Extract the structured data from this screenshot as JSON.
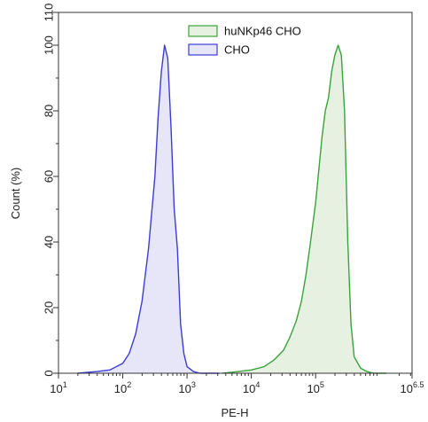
{
  "chart_data": {
    "type": "area",
    "xlabel": "PE-H",
    "ylabel": "Count (%)",
    "x_scale": "log10",
    "xlim": [
      1,
      6.5
    ],
    "ylim": [
      0,
      110
    ],
    "x_ticks": [
      {
        "value": 1,
        "base": "10",
        "exp": "1"
      },
      {
        "value": 2,
        "base": "10",
        "exp": "2"
      },
      {
        "value": 3,
        "base": "10",
        "exp": "3"
      },
      {
        "value": 4,
        "base": "10",
        "exp": "4"
      },
      {
        "value": 5,
        "base": "10",
        "exp": "5"
      },
      {
        "value": 6.5,
        "base": "10",
        "exp": "6.5"
      }
    ],
    "y_ticks": [
      0,
      20,
      40,
      60,
      80,
      100,
      110
    ],
    "grid": false,
    "legend": {
      "placement": "top-center",
      "entries": [
        "huNKp46 CHO",
        "CHO"
      ]
    },
    "series": [
      {
        "name": "huNKp46 CHO",
        "color": "#3aa33a",
        "fill": "#e6f1e2",
        "x": [
          3.55,
          3.8,
          4.0,
          4.2,
          4.35,
          4.5,
          4.6,
          4.7,
          4.78,
          4.85,
          4.92,
          5.0,
          5.05,
          5.1,
          5.15,
          5.2,
          5.25,
          5.3,
          5.35,
          5.4,
          5.45,
          5.5,
          5.55,
          5.6,
          5.7,
          5.8,
          5.9,
          6.1
        ],
        "y": [
          0,
          0.5,
          1,
          2,
          4,
          7,
          11,
          16,
          22,
          30,
          40,
          52,
          62,
          72,
          80,
          84,
          92,
          97,
          100,
          97,
          80,
          40,
          15,
          5,
          1.5,
          0.5,
          0,
          0
        ]
      },
      {
        "name": "CHO",
        "color": "#3b3bd8",
        "fill": "#e6e6f8",
        "x": [
          1.3,
          1.6,
          1.8,
          2.0,
          2.1,
          2.2,
          2.3,
          2.4,
          2.5,
          2.55,
          2.6,
          2.65,
          2.7,
          2.75,
          2.8,
          2.85,
          2.9,
          2.95,
          3.0,
          3.1,
          3.2,
          3.35,
          3.5
        ],
        "y": [
          0,
          0.5,
          1,
          3,
          6,
          12,
          22,
          38,
          60,
          78,
          92,
          100,
          96,
          75,
          50,
          38,
          15,
          6,
          2,
          0.5,
          0,
          0,
          0
        ]
      }
    ]
  }
}
